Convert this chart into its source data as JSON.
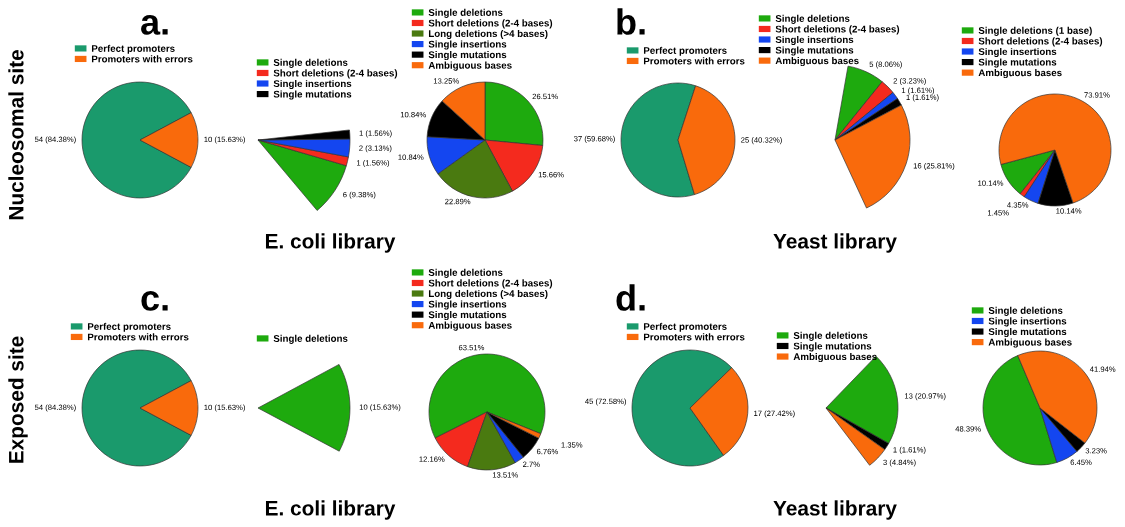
{
  "chart_data": [
    {
      "type": "pie",
      "title": "a.",
      "annotations": [
        "Nucleosomal site"
      ],
      "legend": "top",
      "categories": [
        "Perfect promoters",
        "Promoters with errors"
      ],
      "values": [
        84.38,
        15.63
      ],
      "colors": [
        "#1a9a6c",
        "#f96a0c"
      ],
      "value_labels": [
        "54 (84.38%)",
        "10 (15.63%)"
      ]
    },
    {
      "type": "pie",
      "annotations": [
        "E. coli library"
      ],
      "legend": "top",
      "categories": [
        "Single deletions",
        "Short deletions (2-4 bases)",
        "Single insertions",
        "Single mutations"
      ],
      "values": [
        9.38,
        1.56,
        3.13,
        1.56
      ],
      "colors": [
        "#1eaa0e",
        "#f42a1e",
        "#1446f0",
        "#000000"
      ],
      "value_labels": [
        "6 (9.38%)",
        "1 (1.56%)",
        "2 (3.13%)",
        "1 (1.56%)"
      ]
    },
    {
      "type": "pie",
      "legend": "top",
      "categories": [
        "Single deletions",
        "Short deletions (2-4 bases)",
        "Long deletions (>4 bases)",
        "Single insertions",
        "Single mutations",
        "Ambiguous bases"
      ],
      "values": [
        26.51,
        15.66,
        22.89,
        10.84,
        10.84,
        13.25
      ],
      "colors": [
        "#1eaa0e",
        "#f42a1e",
        "#4a7a10",
        "#1446f0",
        "#000000",
        "#f96a0c"
      ],
      "value_labels": [
        "26.51%",
        "15.66%",
        "22.89%",
        "10.84%",
        "10.84%",
        "13.25%"
      ]
    },
    {
      "type": "pie",
      "title": "b.",
      "legend": "top",
      "categories": [
        "Perfect promoters",
        "Promoters with errors"
      ],
      "values": [
        59.68,
        40.32
      ],
      "colors": [
        "#1a9a6c",
        "#f96a0c"
      ],
      "value_labels": [
        "37 (59.68%)",
        "25 (40.32%)"
      ]
    },
    {
      "type": "pie",
      "annotations": [
        "Yeast library"
      ],
      "legend": "top",
      "categories": [
        "Single deletions",
        "Short deletions (2-4 bases)",
        "Single insertions",
        "Single mutations",
        "Ambiguous bases"
      ],
      "values": [
        8.06,
        3.23,
        1.61,
        1.61,
        25.81
      ],
      "colors": [
        "#1eaa0e",
        "#f42a1e",
        "#1446f0",
        "#000000",
        "#f96a0c"
      ],
      "value_labels": [
        "5 (8.06%)",
        "2 (3.23%)",
        "1 (1.61%)",
        "1 (1.61%)",
        "16 (25.81%)"
      ]
    },
    {
      "type": "pie",
      "legend": "top",
      "categories": [
        "Single deletions (1 base)",
        "Short deletions (2-4 bases)",
        "Single insertions",
        "Single mutations",
        "Ambiguous bases"
      ],
      "values": [
        10.14,
        1.45,
        4.35,
        10.14,
        73.91
      ],
      "colors": [
        "#1eaa0e",
        "#f42a1e",
        "#1446f0",
        "#000000",
        "#f96a0c"
      ],
      "value_labels": [
        "10.14%",
        "1.45%",
        "4.35%",
        "10.14%",
        "73.91%"
      ]
    },
    {
      "type": "pie",
      "title": "c.",
      "annotations": [
        "Exposed site"
      ],
      "legend": "top",
      "categories": [
        "Perfect promoters",
        "Promoters with errors"
      ],
      "values": [
        84.38,
        15.63
      ],
      "colors": [
        "#1a9a6c",
        "#f96a0c"
      ],
      "value_labels": [
        "54 (84.38%)",
        "10 (15.63%)"
      ]
    },
    {
      "type": "pie",
      "annotations": [
        "E. coli library"
      ],
      "legend": "top",
      "categories": [
        "Single deletions"
      ],
      "values": [
        15.63
      ],
      "colors": [
        "#1eaa0e"
      ],
      "value_labels": [
        "10 (15.63%)"
      ]
    },
    {
      "type": "pie",
      "legend": "top",
      "categories": [
        "Single deletions",
        "Short deletions (2-4 bases)",
        "Long deletions (>4 bases)",
        "Single insertions",
        "Single mutations",
        "Ambiguous bases"
      ],
      "values": [
        63.51,
        12.16,
        13.51,
        2.7,
        6.76,
        1.35
      ],
      "colors": [
        "#1eaa0e",
        "#f42a1e",
        "#4a7a10",
        "#1446f0",
        "#000000",
        "#f96a0c"
      ],
      "value_labels": [
        "63.51%",
        "12.16%",
        "13.51%",
        "2.7%",
        "6.76%",
        "1.35%"
      ]
    },
    {
      "type": "pie",
      "title": "d.",
      "legend": "top",
      "categories": [
        "Perfect promoters",
        "Promoters with errors"
      ],
      "values": [
        72.58,
        27.42
      ],
      "colors": [
        "#1a9a6c",
        "#f96a0c"
      ],
      "value_labels": [
        "45 (72.58%)",
        "17 (27.42%)"
      ]
    },
    {
      "type": "pie",
      "annotations": [
        "Yeast library"
      ],
      "legend": "top",
      "categories": [
        "Single deletions",
        "Single mutations",
        "Ambiguous bases"
      ],
      "values": [
        20.97,
        1.61,
        4.84
      ],
      "colors": [
        "#1eaa0e",
        "#000000",
        "#f96a0c"
      ],
      "value_labels": [
        "13 (20.97%)",
        "1 (1.61%)",
        "3 (4.84%)"
      ]
    },
    {
      "type": "pie",
      "legend": "top",
      "categories": [
        "Single deletions",
        "Single insertions",
        "Single mutations",
        "Ambiguous bases"
      ],
      "values": [
        48.39,
        6.45,
        3.23,
        41.94
      ],
      "colors": [
        "#1eaa0e",
        "#1446f0",
        "#000000",
        "#f96a0c"
      ],
      "value_labels": [
        "48.39%",
        "6.45%",
        "3.23%",
        "41.94%"
      ]
    }
  ]
}
